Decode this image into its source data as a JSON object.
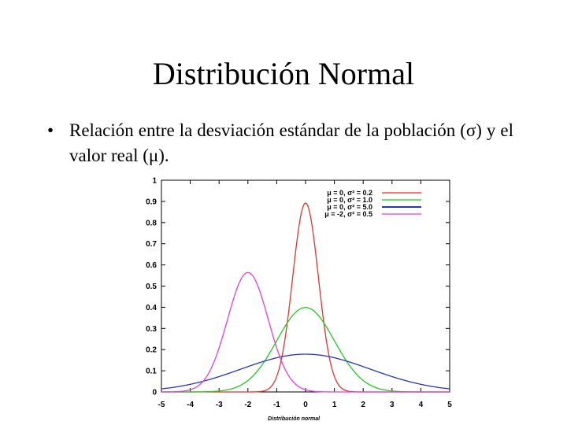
{
  "slide": {
    "title": "Distribución Normal",
    "bullet_symbol": "•",
    "bullet_text": "Relación entre la desviación estándar de la población (σ) y el valor real (μ)."
  },
  "chart_data": {
    "type": "line",
    "title": "",
    "xlabel": "Distribución normal",
    "ylabel": "",
    "xlim": [
      -5,
      5
    ],
    "ylim": [
      0,
      1
    ],
    "x_ticks": [
      "-5",
      "-4",
      "-3",
      "-2",
      "-1",
      "0",
      "1",
      "2",
      "3",
      "4",
      "5"
    ],
    "y_ticks": [
      "0",
      "0.1",
      "0.2",
      "0.3",
      "0.4",
      "0.5",
      "0.6",
      "0.7",
      "0.8",
      "0.9",
      "1"
    ],
    "grid": false,
    "legend_position": "top-right",
    "series": [
      {
        "name": "μ = 0, σ² = 0.2",
        "mu": 0,
        "sigma2": 0.2,
        "color": "#e8322d"
      },
      {
        "name": "μ = 0, σ² = 1.0",
        "mu": 0,
        "sigma2": 1.0,
        "color": "#22c922"
      },
      {
        "name": "μ = 0, σ² = 5.0",
        "mu": 0,
        "sigma2": 5.0,
        "color": "#2a35b8"
      },
      {
        "name": "μ = -2, σ² = 0.5",
        "mu": -2,
        "sigma2": 0.5,
        "color": "#e33fd9"
      }
    ]
  }
}
